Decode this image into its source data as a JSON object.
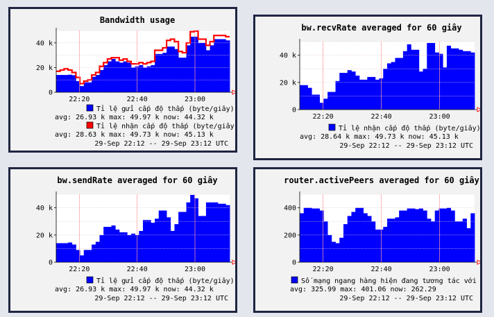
{
  "colors": {
    "send": "#0000ff",
    "recv_line": "#ff0000",
    "grid": "#e8c8c8",
    "vgrid": "#ff9a9a",
    "panel_bg": "#f2f2f2",
    "border": "#1f2540"
  },
  "x_tick_labels": [
    "22:20",
    "22:40",
    "23:00"
  ],
  "chart_data": [
    {
      "type": "area",
      "title": "Bandwidth usage",
      "x_range": [
        "29-Sep 22:12",
        "29-Sep 23:12"
      ],
      "ylim": [
        0,
        50000
      ],
      "y_tick_labels": [
        "0",
        "20 k",
        "40 k"
      ],
      "series": [
        {
          "name": "Tỉ lệ gửi cấp độ thấp (byte/giây)",
          "style": "filled-area",
          "color": "#0000ff",
          "values": [
            14000,
            14000,
            14000,
            14200,
            13800,
            9000,
            5000,
            8000,
            8000,
            12500,
            14000,
            18000,
            22000,
            25000,
            27000,
            25000,
            24000,
            25000,
            24000,
            20000,
            21000,
            22000,
            20000,
            21000,
            22000,
            31000,
            31000,
            32000,
            37000,
            37000,
            35000,
            28000,
            28000,
            38000,
            45000,
            45000,
            40000,
            40000,
            34000,
            38000,
            43000,
            43000,
            43000,
            42000
          ],
          "stats": {
            "avg": "26.93 k",
            "max": "49.97 k",
            "now": "44.32 k"
          }
        },
        {
          "name": "Tỉ lệ nhận cấp độ thấp (byte/giây)",
          "style": "line",
          "color": "#ff0000",
          "values": [
            17000,
            18000,
            19000,
            18000,
            16000,
            12000,
            7000,
            9000,
            10000,
            14000,
            16000,
            21000,
            24000,
            27000,
            28000,
            28000,
            26000,
            27000,
            25000,
            23000,
            23000,
            24000,
            23000,
            24000,
            25000,
            34000,
            34000,
            36000,
            42000,
            43000,
            41000,
            33000,
            32000,
            40000,
            49000,
            49500,
            43000,
            43000,
            38000,
            41000,
            46000,
            46000,
            46000,
            45000
          ],
          "stats": {
            "avg": "28.63 k",
            "max": "49.73 k",
            "now": "45.13 k"
          }
        }
      ],
      "time_range_label": "29-Sep 22:12 -- 29-Sep 23:12 UTC"
    },
    {
      "type": "area",
      "title": "bw.recvRate averaged for 60 giây",
      "ylim": [
        0,
        50000
      ],
      "y_tick_labels": [
        "0",
        "20 k",
        "40 k"
      ],
      "series": [
        {
          "name": "Tỉ lệ nhận cấp độ thấp (byte/giây)",
          "color": "#0000ff",
          "values": [
            18000,
            18000,
            16000,
            11000,
            11000,
            5000,
            8000,
            13000,
            13000,
            21000,
            27000,
            27000,
            29000,
            28000,
            25000,
            22000,
            22000,
            24000,
            24000,
            22000,
            23000,
            30000,
            34000,
            35000,
            38000,
            38000,
            43000,
            48000,
            44000,
            44000,
            28000,
            30000,
            49000,
            49000,
            42000,
            41000,
            31000,
            47000,
            45000,
            45000,
            44000,
            43000,
            43000,
            42000
          ],
          "stats": {
            "avg": "28.64 k",
            "max": "49.73 k",
            "now": "45.13 k"
          }
        }
      ],
      "time_range_label": "29-Sep 22:12 -- 29-Sep 23:12 UTC"
    },
    {
      "type": "area",
      "title": "bw.sendRate averaged for 60 giây",
      "ylim": [
        0,
        50000
      ],
      "y_tick_labels": [
        "0",
        "20 k",
        "40 k"
      ],
      "series": [
        {
          "name": "Tỉ lệ gửi cấp độ thấp (byte/giây)",
          "color": "#0000ff",
          "values": [
            14000,
            14000,
            14000,
            14500,
            13000,
            9000,
            5000,
            9000,
            9000,
            13000,
            15000,
            20000,
            26000,
            26000,
            27000,
            24000,
            22000,
            22000,
            20000,
            21000,
            20000,
            23000,
            31000,
            31000,
            29000,
            32000,
            38000,
            38000,
            33000,
            23000,
            28000,
            37000,
            37000,
            44000,
            49500,
            47000,
            34000,
            34000,
            44000,
            44000,
            44000,
            43000,
            43000,
            42000
          ],
          "stats": {
            "avg": "26.93 k",
            "max": "49.97 k",
            "now": "44.32 k"
          }
        }
      ],
      "time_range_label": "29-Sep 22:12 -- 29-Sep 23:12 UTC"
    },
    {
      "type": "area",
      "title": "router.activePeers averaged for 60 giây",
      "ylim": [
        0,
        500
      ],
      "y_tick_labels": [
        "0",
        "200",
        "400"
      ],
      "series": [
        {
          "name": "Số mạng ngang hàng hiện đang tương tác với",
          "color": "#0000ff",
          "values": [
            360,
            400,
            400,
            395,
            395,
            380,
            300,
            200,
            150,
            140,
            180,
            280,
            340,
            370,
            400,
            400,
            360,
            340,
            300,
            240,
            240,
            260,
            320,
            320,
            330,
            380,
            380,
            395,
            395,
            390,
            395,
            380,
            320,
            300,
            380,
            395,
            395,
            400,
            380,
            300,
            300,
            320,
            250,
            360
          ],
          "stats": {
            "avg": "325.99",
            "max": "401.06",
            "now": "262.29"
          }
        }
      ],
      "time_range_label": "29-Sep 22:12 -- 29-Sep 23:12 UTC"
    }
  ]
}
